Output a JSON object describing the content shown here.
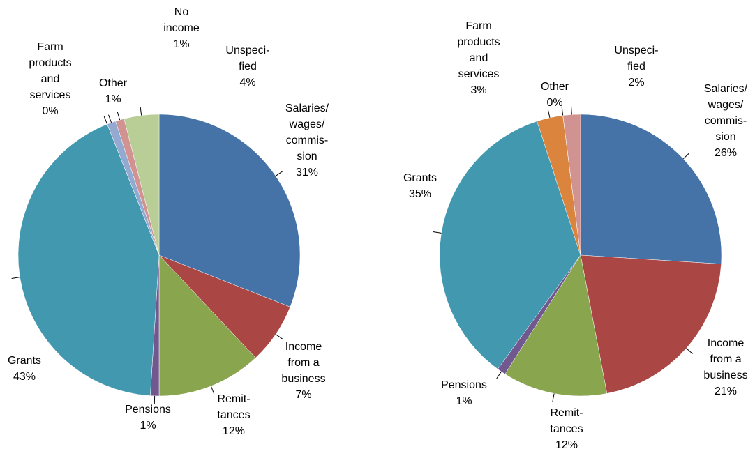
{
  "chart_data": [
    {
      "type": "pie",
      "categories": [
        "Salaries/\nwages/\ncommis-\nsion",
        "Income\nfrom a\nbusiness",
        "Remit-\ntances",
        "Pensions",
        "Grants",
        "Farm\nproducts\nand\nservices",
        "Other",
        "No\nincome",
        "Unspeci-\nfied"
      ],
      "values": [
        31,
        7,
        12,
        1,
        43,
        0,
        1,
        1,
        4
      ],
      "value_labels": [
        "31%",
        "7%",
        "12%",
        "1%",
        "43%",
        "0%",
        "1%",
        "1%",
        "4%"
      ],
      "colors": [
        "#4572a7",
        "#aa4643",
        "#89a54e",
        "#71588f",
        "#4198af",
        "#db843d",
        "#93a9cf",
        "#d19392",
        "#b9cd96"
      ]
    },
    {
      "type": "pie",
      "categories": [
        "Salaries/\nwages/\ncommis-\nsion",
        "Income\nfrom a\nbusiness",
        "Remit-\ntances",
        "Pensions",
        "Grants",
        "Farm\nproducts\nand\nservices",
        "Other",
        "Unspeci-\nfied"
      ],
      "values": [
        26,
        21,
        12,
        1,
        35,
        3,
        0,
        2
      ],
      "value_labels": [
        "26%",
        "21%",
        "12%",
        "1%",
        "35%",
        "3%",
        "0%",
        "2%"
      ],
      "colors": [
        "#4572a7",
        "#aa4643",
        "#89a54e",
        "#71588f",
        "#4198af",
        "#db843d",
        "#93a9cf",
        "#d19392"
      ]
    }
  ]
}
